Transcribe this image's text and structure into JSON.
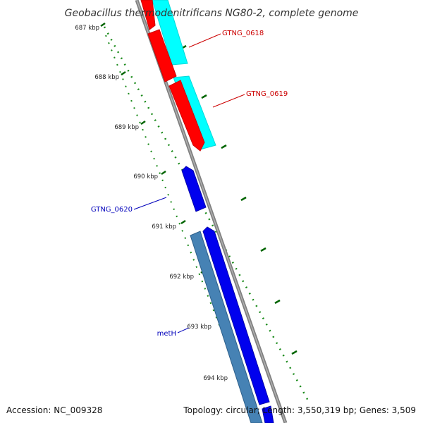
{
  "title": "Geobacillus thermodenitrificans NG80-2, complete genome",
  "footer": {
    "accession": "Accession: NC_009328",
    "topology": "Topology: circular; Length: 3,550,319 bp; Genes: 3,509"
  },
  "ticks": [
    "687 kbp",
    "688 kbp",
    "689 kbp",
    "690 kbp",
    "691 kbp",
    "692 kbp",
    "693 kbp",
    "694 kbp"
  ],
  "genes": [
    {
      "label": "GTNG_0618",
      "color": "#cc0000"
    },
    {
      "label": "GTNG_0619",
      "color": "#cc0000"
    },
    {
      "label": "GTNG_0620",
      "color": "#0000bb"
    },
    {
      "label": "metH",
      "color": "#0000bb"
    }
  ],
  "colors": {
    "backbone": "#808080",
    "cds_red": "#ff0000",
    "cds_cyan": "#00ffff",
    "cds_blue": "#0000ee",
    "cds_steel": "#4682b4",
    "tick_green": "#006400"
  }
}
